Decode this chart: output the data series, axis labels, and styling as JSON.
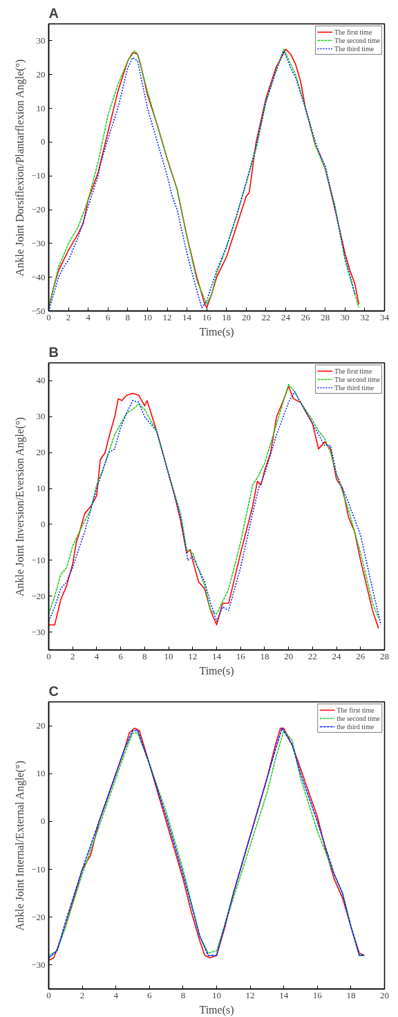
{
  "chart_data": [
    {
      "type": "line",
      "title": "A",
      "xlabel": "Time(s)",
      "ylabel": "Ankle Joint Dorsiflexion/Plantarflexion Angle(°)",
      "xlim": [
        0,
        34
      ],
      "xticks": [
        0,
        2,
        4,
        6,
        8,
        10,
        12,
        14,
        16,
        18,
        20,
        22,
        24,
        26,
        28,
        30,
        32,
        34
      ],
      "ylim": [
        -50,
        35
      ],
      "yticks": [
        -50,
        -40,
        -30,
        -20,
        -10,
        0,
        10,
        20,
        30
      ],
      "legend": "top right",
      "grid": false,
      "marker": "none",
      "series": [
        {
          "name": "The first time",
          "color": "#ff0000",
          "line_style": "solid",
          "x": [
            0,
            0.5,
            1,
            2,
            3,
            3.5,
            4,
            5,
            5.5,
            6,
            7,
            8,
            8.5,
            9,
            9.3,
            10,
            11,
            12,
            13,
            14,
            15,
            15.8,
            16,
            16.5,
            17,
            18,
            19,
            20,
            20.3,
            21,
            22,
            23,
            24,
            24.5,
            25,
            25.5,
            26,
            27,
            27.5,
            28,
            29,
            30,
            30.5,
            31,
            31.4
          ],
          "values": [
            -49,
            -43,
            -38,
            -32,
            -27,
            -24,
            -17,
            -9,
            -3,
            3,
            15,
            24,
            26.5,
            26,
            23,
            14,
            5,
            -5,
            -14,
            -28,
            -40,
            -48,
            -49,
            -45,
            -40,
            -34,
            -25,
            -16,
            -15,
            0,
            13,
            22,
            27.5,
            26,
            23,
            18,
            10,
            -1,
            -4,
            -8,
            -20,
            -33,
            -38,
            -42,
            -48
          ]
        },
        {
          "name": "The second time",
          "color": "#22cc22",
          "line_style": "dashed",
          "x": [
            0,
            1,
            2,
            3,
            4,
            5,
            6,
            7,
            8,
            8.7,
            9,
            10,
            11,
            12,
            13,
            14,
            15,
            16,
            16.5,
            17,
            18,
            19,
            20,
            21,
            22,
            23,
            23.8,
            25,
            26,
            27,
            28,
            29,
            30,
            31,
            31.4
          ],
          "values": [
            -49,
            -37,
            -30,
            -25,
            -17,
            -6,
            8,
            17,
            24,
            27,
            26,
            15,
            5,
            -5,
            -14,
            -28,
            -41,
            -48,
            -45,
            -39,
            -31,
            -22,
            -12,
            -2,
            12,
            21,
            27.5,
            20,
            10,
            -1,
            -8,
            -19,
            -35,
            -45,
            -49
          ]
        },
        {
          "name": "The third time",
          "color": "#0022ff",
          "line_style": "dotted",
          "x": [
            0,
            1,
            1.5,
            2,
            3,
            4,
            5,
            5.2,
            6,
            7,
            8,
            8.5,
            9,
            10,
            11,
            12,
            12.5,
            13,
            14,
            15,
            15.5,
            16,
            17,
            18,
            19,
            20,
            21,
            22,
            23,
            23.8,
            24.5,
            25,
            26,
            27,
            27.5,
            28,
            29,
            30,
            31
          ],
          "values": [
            -50,
            -40,
            -37,
            -35,
            -28,
            -19,
            -10,
            -7,
            1,
            10,
            22,
            25,
            24,
            10,
            0,
            -10,
            -16,
            -20,
            -33,
            -44,
            -49,
            -47,
            -38,
            -31,
            -22,
            -12,
            -1,
            12,
            21,
            27,
            22,
            19,
            10,
            0,
            -4,
            -7,
            -20,
            -34,
            -45
          ]
        }
      ]
    },
    {
      "type": "line",
      "title": "B",
      "xlabel": "Time(s)",
      "ylabel": "Ankle Joint Inversion/Eversion Angle(°)",
      "xlim": [
        0,
        28
      ],
      "xticks": [
        0,
        2,
        4,
        6,
        8,
        10,
        12,
        14,
        16,
        18,
        20,
        22,
        24,
        26,
        28
      ],
      "ylim": [
        -35,
        45
      ],
      "yticks": [
        -30,
        -20,
        -10,
        0,
        10,
        20,
        30,
        40
      ],
      "legend": "top right",
      "grid": false,
      "marker": "none",
      "series": [
        {
          "name": "The first time",
          "color": "#ff0000",
          "line_style": "solid",
          "x": [
            0,
            0.5,
            1,
            1.5,
            2,
            2.3,
            2.5,
            3,
            3.5,
            4,
            4.3,
            4.7,
            5,
            5.5,
            5.8,
            6.1,
            6.5,
            7,
            7.5,
            8,
            8.2,
            9,
            10,
            10.5,
            11,
            11.5,
            11.8,
            12,
            12.5,
            13,
            13.5,
            14,
            14.5,
            15,
            16,
            17,
            17.4,
            17.7,
            18,
            18.5,
            19,
            19.5,
            20,
            20.4,
            21,
            22,
            22.5,
            23,
            23.5,
            24,
            24.5,
            25,
            25.5,
            26,
            26.5,
            27,
            27.5
          ],
          "values": [
            -28,
            -28,
            -21,
            -17,
            -11,
            -5,
            -3,
            3,
            5,
            8,
            18,
            20,
            24,
            30,
            35,
            34.5,
            36,
            36.5,
            36,
            33,
            34.5,
            26,
            14,
            8,
            1,
            -8,
            -7,
            -10,
            -16,
            -18,
            -24,
            -28,
            -22,
            -22,
            -8,
            5,
            12,
            11,
            15,
            20,
            30,
            34,
            38.5,
            35,
            34,
            28,
            21,
            23,
            21,
            12.5,
            10,
            2,
            -2,
            -10,
            -17,
            -24,
            -29
          ]
        },
        {
          "name": "The second time",
          "color": "#22cc22",
          "line_style": "dashed",
          "x": [
            0,
            0.5,
            1,
            1.5,
            2,
            3,
            3.5,
            4,
            4.5,
            5,
            5.5,
            6,
            6.5,
            7,
            7.5,
            8,
            9,
            10,
            11,
            11.5,
            12,
            13,
            13.5,
            14,
            15,
            16,
            17,
            17.4,
            18,
            19,
            20,
            20.5,
            21,
            22,
            22.5,
            23,
            23.5,
            24,
            25,
            26,
            27,
            27.5
          ],
          "values": [
            -25,
            -20,
            -14,
            -12,
            -6,
            1,
            4,
            11,
            15,
            20,
            25,
            28,
            31,
            32,
            33.5,
            32,
            26,
            14,
            3,
            -7,
            -8,
            -17,
            -24,
            -25,
            -18,
            -5,
            11,
            13,
            17,
            28,
            39,
            37,
            34,
            29,
            26,
            24,
            20,
            14,
            4,
            -8,
            -22,
            -26
          ]
        },
        {
          "name": "The third time",
          "color": "#0022ff",
          "line_style": "dotted",
          "x": [
            0,
            0.5,
            1,
            1.5,
            2,
            3,
            3.5,
            4,
            4.5,
            5,
            5.5,
            6,
            6.5,
            7,
            7.5,
            8,
            9,
            10,
            11,
            11.6,
            12,
            13,
            13.5,
            14,
            14.5,
            15,
            16,
            17,
            17.5,
            18,
            19,
            20,
            20.5,
            21,
            22,
            22.5,
            23,
            23.5,
            24,
            25,
            26,
            27,
            27.7
          ],
          "values": [
            -27,
            -23,
            -18,
            -16,
            -12,
            -2,
            4,
            10,
            15,
            20,
            21,
            27,
            31,
            34.5,
            34,
            30,
            26,
            14,
            2,
            -10,
            -9,
            -16,
            -22,
            -27,
            -23,
            -24,
            -12,
            3,
            10,
            14,
            25,
            34,
            37,
            34,
            28,
            25,
            22,
            22,
            14,
            6,
            -3,
            -18,
            -28
          ]
        }
      ]
    },
    {
      "type": "line",
      "title": "C",
      "xlabel": "Time(s)",
      "ylabel": "Ankle Joint Internal/External Angle(°)",
      "xlim": [
        0,
        20
      ],
      "xticks": [
        0,
        2,
        4,
        6,
        8,
        10,
        12,
        14,
        16,
        18,
        20
      ],
      "ylim": [
        -35,
        25
      ],
      "yticks": [
        -30,
        -20,
        -10,
        0,
        10,
        20
      ],
      "legend": "top right",
      "grid": false,
      "marker": "none",
      "series": [
        {
          "name": "The first time",
          "color": "#ff0000",
          "line_style": "solid",
          "x": [
            0,
            0.3,
            1,
            2,
            2.5,
            3,
            3.5,
            4,
            4.5,
            4.8,
            5.1,
            5.4,
            6,
            7,
            8,
            8.5,
            9,
            9.3,
            9.6,
            10,
            10.5,
            11,
            12,
            13,
            13.5,
            13.8,
            14,
            14.5,
            15,
            16,
            16.5,
            17,
            17.5,
            18,
            18.5,
            18.8
          ],
          "values": [
            -29,
            -28.5,
            -22,
            -10,
            -7,
            0,
            5,
            10,
            15,
            18.5,
            19.5,
            19,
            12,
            0,
            -12,
            -19,
            -25,
            -28,
            -28.5,
            -28,
            -22,
            -15,
            -3,
            9,
            16,
            19.5,
            19.5,
            16,
            11,
            1,
            -6,
            -12,
            -16,
            -22,
            -27.5,
            -28
          ]
        },
        {
          "name": "the second time",
          "color": "#22cc22",
          "line_style": "dashed",
          "x": [
            0,
            0.5,
            1,
            2,
            3,
            4,
            4.5,
            5,
            5.3,
            6,
            7,
            7.5,
            8,
            9,
            9.5,
            10,
            11,
            12,
            13,
            13.5,
            14,
            14.5,
            15,
            16,
            17,
            17.5,
            18,
            18.5,
            18.8
          ],
          "values": [
            -28,
            -27,
            -22,
            -11,
            -1,
            9,
            14,
            18.5,
            18.5,
            12,
            2,
            -4,
            -10,
            -24,
            -27.5,
            -27,
            -16,
            -5,
            6,
            13,
            19,
            17,
            9,
            -2,
            -11,
            -15,
            -22,
            -28,
            -28
          ]
        },
        {
          "name": "the third time",
          "color": "#0022ff",
          "line_style": "dashed",
          "x": [
            0,
            0.5,
            1,
            2,
            3,
            4,
            4.5,
            5,
            5.3,
            6,
            7,
            8,
            9,
            9.5,
            10,
            11,
            12,
            13,
            13.5,
            13.9,
            14.5,
            15,
            16,
            17,
            17.5,
            18,
            18.5,
            18.8
          ],
          "values": [
            -28.5,
            -27,
            -21,
            -10,
            0,
            10,
            15,
            19,
            19,
            12,
            1,
            -11,
            -24,
            -28,
            -28,
            -15,
            -3,
            9,
            15,
            19.5,
            16,
            10,
            0,
            -11,
            -15,
            -22,
            -28,
            -28
          ]
        }
      ]
    }
  ]
}
